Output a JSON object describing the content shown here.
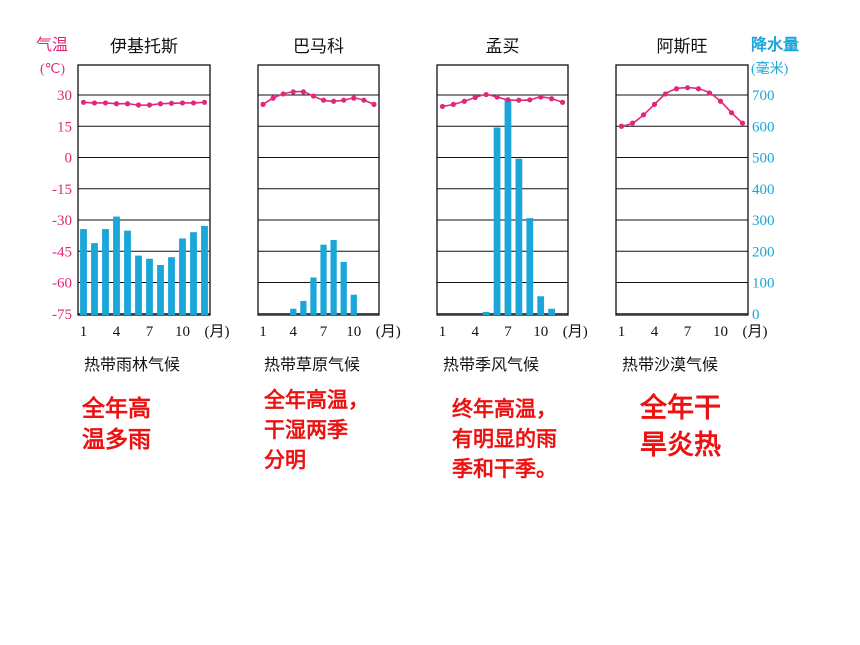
{
  "axes": {
    "left_label": "气温",
    "left_unit": "(℃)",
    "right_label": "降水量",
    "right_unit": "(毫米)",
    "left_ticks": [
      "30",
      "15",
      "0",
      "-15",
      "-30",
      "-45",
      "-60",
      "-75"
    ],
    "right_ticks": [
      "700",
      "600",
      "500",
      "400",
      "300",
      "200",
      "100",
      "0"
    ],
    "x_ticks": [
      "1",
      "4",
      "7",
      "10"
    ],
    "x_unit": "(月)"
  },
  "colors": {
    "temperature": "#e0287a",
    "precipitation": "#1aa6d9",
    "notes": "#ee1111"
  },
  "chart_data": [
    {
      "type": "bar+line",
      "title": "伊基托斯",
      "climate": "热带雨林气候",
      "months": [
        1,
        2,
        3,
        4,
        5,
        6,
        7,
        8,
        9,
        10,
        11,
        12
      ],
      "temperature": [
        26.5,
        26.2,
        26.2,
        25.8,
        25.8,
        25.2,
        25.2,
        25.8,
        26.0,
        26.2,
        26.2,
        26.5
      ],
      "precipitation": [
        275,
        230,
        275,
        315,
        270,
        190,
        180,
        160,
        185,
        245,
        265,
        285
      ]
    },
    {
      "type": "bar+line",
      "title": "巴马科",
      "climate": "热带草原气候",
      "months": [
        1,
        2,
        3,
        4,
        5,
        6,
        7,
        8,
        9,
        10,
        11,
        12
      ],
      "temperature": [
        25.5,
        28.5,
        30.5,
        31.5,
        31.5,
        29.5,
        27.5,
        27.0,
        27.5,
        28.5,
        27.5,
        25.5
      ],
      "precipitation": [
        0,
        0,
        0,
        20,
        45,
        120,
        225,
        240,
        170,
        65,
        0,
        0
      ]
    },
    {
      "type": "bar+line",
      "title": "孟买",
      "climate": "热带季风气候",
      "months": [
        1,
        2,
        3,
        4,
        5,
        6,
        7,
        8,
        9,
        10,
        11,
        12
      ],
      "temperature": [
        24.5,
        25.5,
        27.0,
        28.8,
        30.2,
        29.0,
        27.7,
        27.5,
        27.7,
        29.0,
        28.2,
        26.5
      ],
      "precipitation": [
        0,
        0,
        0,
        0,
        10,
        600,
        690,
        500,
        310,
        60,
        20,
        0
      ]
    },
    {
      "type": "bar+line",
      "title": "阿斯旺",
      "climate": "热带沙漠气候",
      "months": [
        1,
        2,
        3,
        4,
        5,
        6,
        7,
        8,
        9,
        10,
        11,
        12
      ],
      "temperature": [
        15.0,
        16.5,
        20.5,
        25.5,
        30.5,
        33.0,
        33.5,
        33.0,
        31.0,
        27.0,
        21.5,
        16.5
      ],
      "precipitation": [
        0,
        0,
        0,
        0,
        0,
        0,
        0,
        0,
        0,
        0,
        0,
        0
      ]
    }
  ],
  "notes": [
    "全年高\n温多雨",
    "全年高温，\n干湿两季\n分明",
    "终年高温，\n有明显的雨\n季和干季。",
    "全年干\n旱炎热"
  ]
}
